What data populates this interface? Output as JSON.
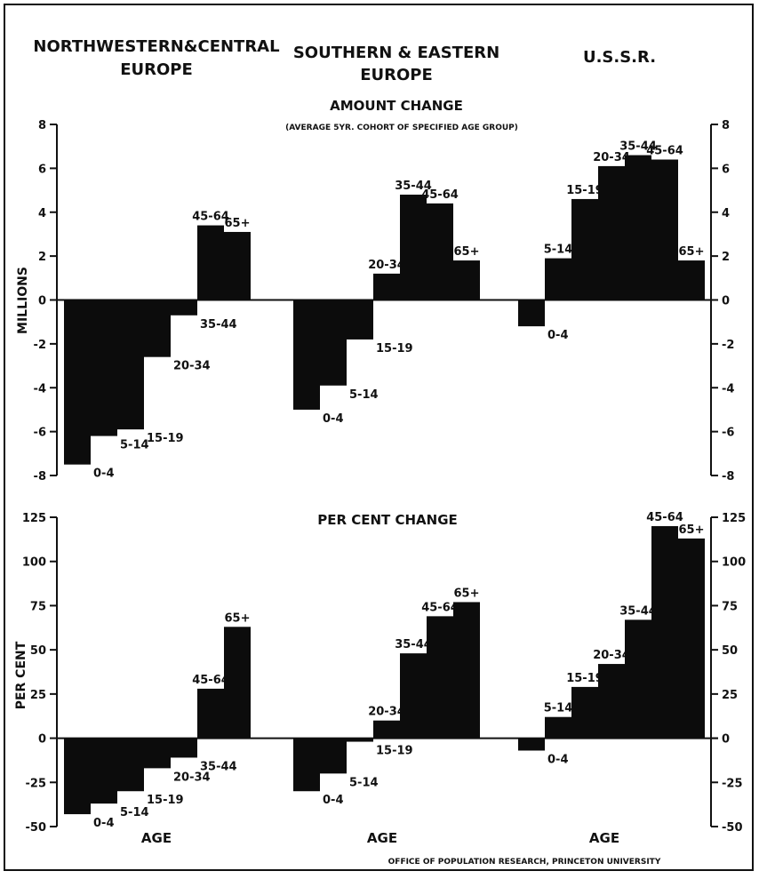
{
  "header": {
    "regions": [
      "NORTHWESTERN&CENTRAL\nEUROPE",
      "SOUTHERN & EASTERN\nEUROPE",
      "U.S.S.R."
    ],
    "footer": "OFFICE OF POPULATION RESEARCH, PRINCETON UNIVERSITY"
  },
  "chart_data": [
    {
      "type": "bar",
      "title": "AMOUNT CHANGE",
      "subtitle": "(AVERAGE 5YR. COHORT OF SPECIFIED AGE GROUP)",
      "ylabel": "MILLIONS",
      "ylim": [
        -8,
        8
      ],
      "yticks": [
        8,
        6,
        4,
        2,
        0,
        -2,
        -4,
        -6,
        -8
      ],
      "ytick_labels": [
        "8",
        "6",
        "4",
        "2",
        "0",
        "-2",
        "-4",
        "-6",
        "-8"
      ],
      "categories": [
        "0-4",
        "5-14",
        "15-19",
        "20-34",
        "35-44",
        "45-64",
        "65+"
      ],
      "series": [
        {
          "name": "NORTHWESTERN&CENTRAL EUROPE",
          "values": [
            -7.5,
            -6.2,
            -5.9,
            -2.6,
            -0.7,
            3.4,
            3.1
          ]
        },
        {
          "name": "SOUTHERN & EASTERN EUROPE",
          "values": [
            -5.0,
            -3.9,
            -1.8,
            1.2,
            4.8,
            4.4,
            1.8
          ]
        },
        {
          "name": "U.S.S.R.",
          "values": [
            -1.2,
            1.9,
            4.6,
            6.1,
            6.6,
            6.4,
            1.8
          ]
        }
      ]
    },
    {
      "type": "bar",
      "title": "PER CENT CHANGE",
      "ylabel": "PER CENT",
      "xlabel": "AGE",
      "ylim": [
        -50,
        125
      ],
      "yticks": [
        125,
        100,
        75,
        50,
        25,
        0,
        -25,
        -50
      ],
      "ytick_labels": [
        "125",
        "100",
        "75",
        "50",
        "25",
        "0",
        "-25",
        "-50"
      ],
      "categories": [
        "0-4",
        "5-14",
        "15-19",
        "20-34",
        "35-44",
        "45-64",
        "65+"
      ],
      "series": [
        {
          "name": "NORTHWESTERN&CENTRAL EUROPE",
          "values": [
            -43,
            -37,
            -30,
            -17,
            -11,
            28,
            63
          ]
        },
        {
          "name": "SOUTHERN & EASTERN EUROPE",
          "values": [
            -30,
            -20,
            -2,
            10,
            48,
            69,
            77
          ]
        },
        {
          "name": "U.S.S.R.",
          "values": [
            -7,
            12,
            29,
            42,
            67,
            120,
            113
          ]
        }
      ]
    }
  ]
}
